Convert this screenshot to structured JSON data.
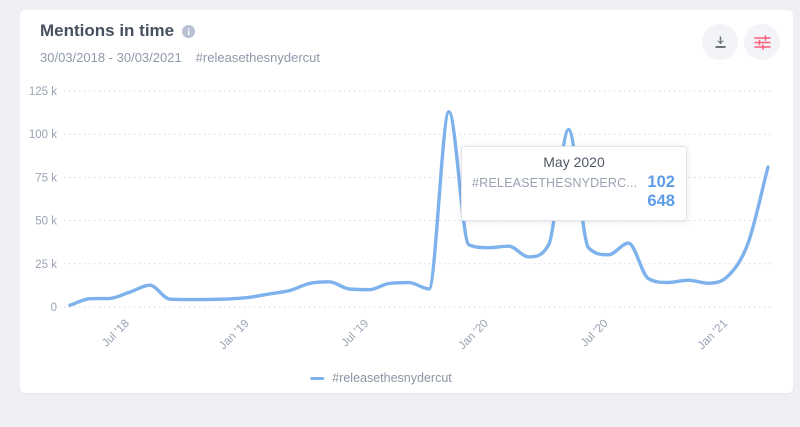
{
  "page": {
    "background": "#eff0f4",
    "card_background": "#ffffff"
  },
  "header": {
    "title": "Mentions in time",
    "info_glyph": "i",
    "date_range": "30/03/2018 - 30/03/2021",
    "hashtag": "#releasethesnydercut"
  },
  "toolbar": {
    "download_icon_color": "#6d747e",
    "settings_icon_color": "#fc5c78"
  },
  "chart_data": {
    "type": "line",
    "title": "Mentions in time",
    "x": [
      "Apr '18",
      "May '18",
      "Jun '18",
      "Jul '18",
      "Aug '18",
      "Sep '18",
      "Oct '18",
      "Nov '18",
      "Dec '18",
      "Jan '19",
      "Feb '19",
      "Mar '19",
      "Apr '19",
      "May '19",
      "Jun '19",
      "Jul '19",
      "Aug '19",
      "Sep '19",
      "Oct '19",
      "Nov '19",
      "Dec '19",
      "Jan '20",
      "Feb '20",
      "Mar '20",
      "Apr '20",
      "May '20",
      "Jun '20",
      "Jul '20",
      "Aug '20",
      "Sep '20",
      "Oct '20",
      "Nov '20",
      "Dec '20",
      "Jan '21",
      "Feb '21",
      "Mar '21"
    ],
    "series": [
      {
        "name": "#releasethesnydercut",
        "color": "#7db2ec",
        "values": [
          1000,
          4800,
          5000,
          8600,
          12600,
          4600,
          4300,
          4400,
          4700,
          5600,
          7600,
          9500,
          13600,
          14600,
          10400,
          10000,
          13600,
          14100,
          10500,
          113000,
          36000,
          34300,
          35200,
          29000,
          36000,
          102648,
          34300,
          30200,
          37000,
          16500,
          14200,
          15500,
          13800,
          18000,
          37000,
          81000
        ]
      }
    ],
    "y_ticks": [
      {
        "label": "0",
        "value": 0
      },
      {
        "label": "25 k",
        "value": 25000
      },
      {
        "label": "50 k",
        "value": 50000
      },
      {
        "label": "75 k",
        "value": 75000
      },
      {
        "label": "100 k",
        "value": 100000
      },
      {
        "label": "125 k",
        "value": 125000
      }
    ],
    "x_ticks": [
      {
        "label": "Jul '18",
        "index": 3
      },
      {
        "label": "Jan '19",
        "index": 9
      },
      {
        "label": "Jul '19",
        "index": 15
      },
      {
        "label": "Jan '20",
        "index": 21
      },
      {
        "label": "Jul '20",
        "index": 27
      },
      {
        "label": "Jan '21",
        "index": 33
      }
    ],
    "ylim": [
      0,
      125000
    ],
    "grid": "horizontal-dotted",
    "grid_color": "#d3d6de",
    "legend_position": "bottom"
  },
  "tooltip": {
    "title": "May 2020",
    "series_label": "#RELEASETHESNYDERC...",
    "value": "102 648",
    "value_color": "#5d9de8"
  },
  "legend": {
    "label": "#releasethesnydercut",
    "color": "#7db2ec"
  }
}
